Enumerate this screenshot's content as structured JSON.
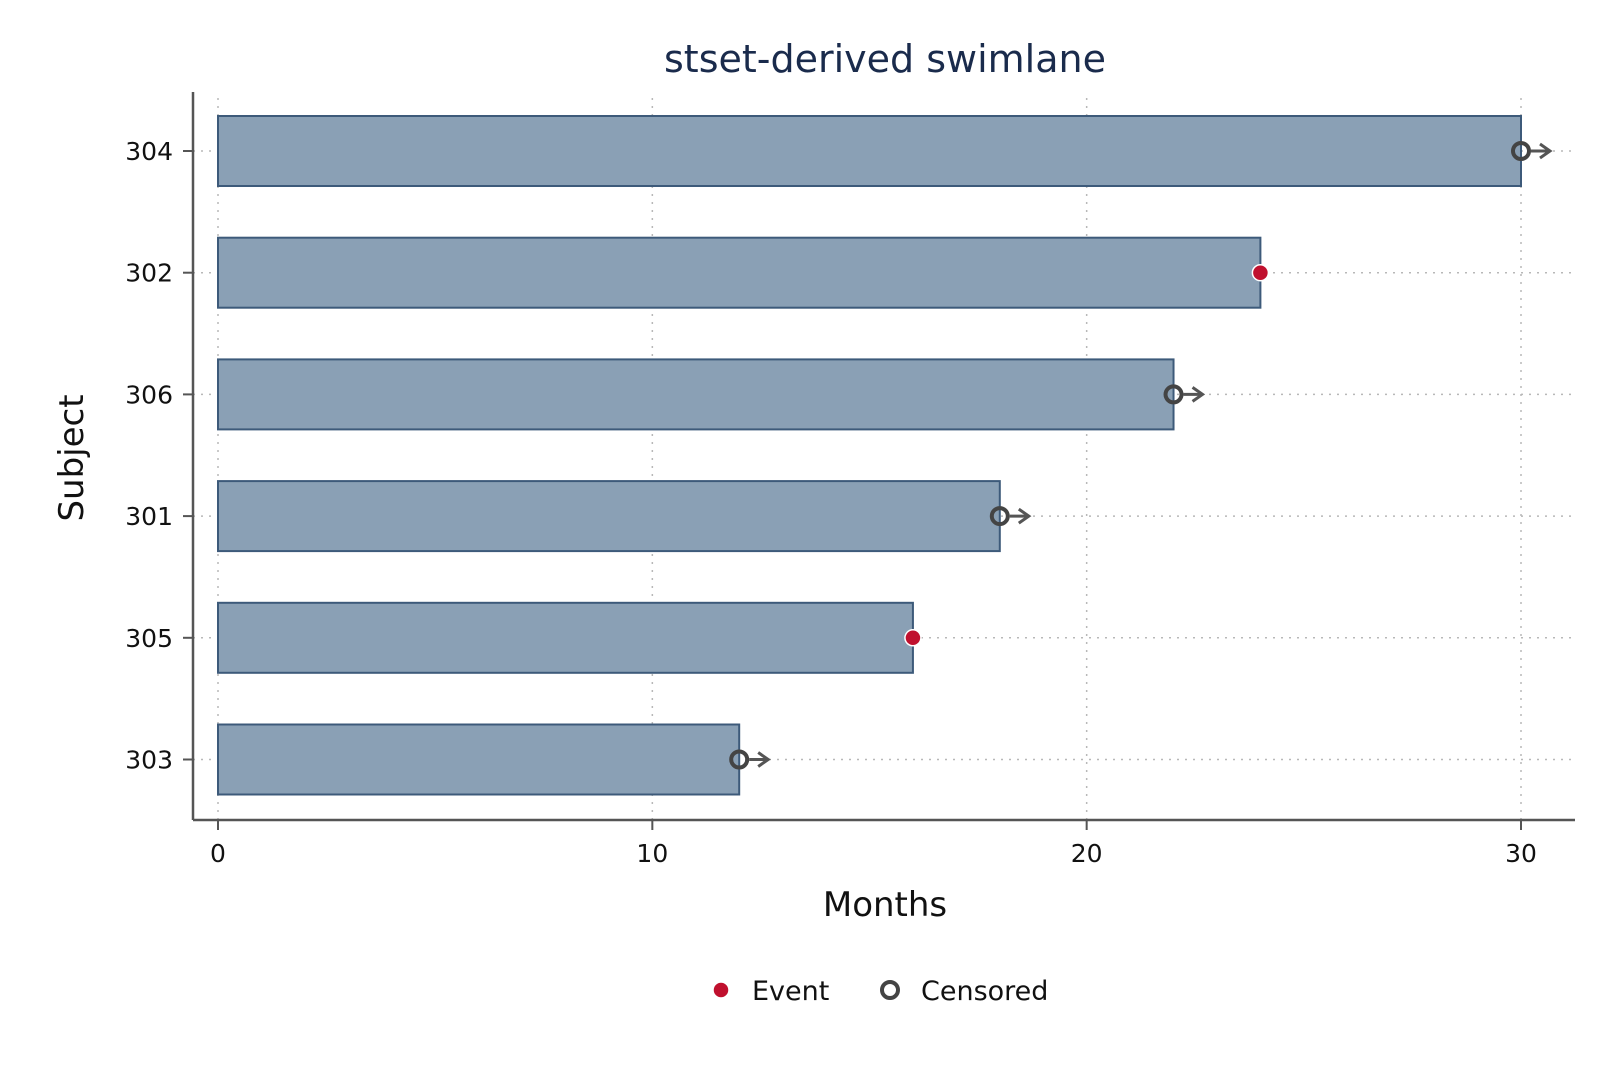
{
  "chart_data": {
    "type": "bar",
    "orientation": "horizontal",
    "title": "stset-derived swimlane",
    "xlabel": "Months",
    "ylabel": "Subject",
    "xlim": [
      0,
      31
    ],
    "xticks": [
      0,
      10,
      20,
      30
    ],
    "grid": true,
    "legend_position": "bottom",
    "categories": [
      "304",
      "302",
      "306",
      "301",
      "305",
      "303"
    ],
    "values": [
      30,
      24,
      22,
      18,
      16,
      12
    ],
    "status": [
      "Censored",
      "Event",
      "Censored",
      "Censored",
      "Event",
      "Censored"
    ],
    "legend": [
      {
        "label": "Event",
        "marker": "filled-circle",
        "color": "#c0102e"
      },
      {
        "label": "Censored",
        "marker": "hollow-circle",
        "color": "#444444"
      }
    ],
    "colors": {
      "bar_fill": "#8aa0b5",
      "bar_stroke": "#3d5a7a",
      "event": "#c0102e",
      "censored": "#444444",
      "title": "#1a2b4c"
    }
  }
}
